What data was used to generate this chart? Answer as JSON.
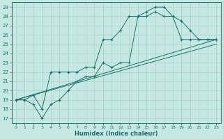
{
  "xlabel": "Humidex (Indice chaleur)",
  "bg_color": "#c5e8e3",
  "grid_color": "#a8d0cc",
  "line_color": "#1e7068",
  "xlim": [
    -0.5,
    23.5
  ],
  "ylim": [
    16.5,
    29.5
  ],
  "xticks": [
    0,
    1,
    2,
    3,
    4,
    5,
    6,
    7,
    8,
    9,
    10,
    11,
    12,
    13,
    14,
    15,
    16,
    17,
    18,
    19,
    20,
    21,
    22,
    23
  ],
  "yticks": [
    17,
    18,
    19,
    20,
    21,
    22,
    23,
    24,
    25,
    26,
    27,
    28,
    29
  ],
  "line1_x": [
    0,
    1,
    2,
    3,
    4,
    5,
    6,
    7,
    8,
    9,
    10,
    11,
    12,
    13,
    14,
    15,
    16,
    17,
    18,
    19,
    20,
    21,
    22,
    23
  ],
  "line1_y": [
    19.0,
    19.0,
    19.5,
    18.0,
    22.0,
    22.0,
    22.0,
    22.0,
    22.5,
    22.5,
    25.5,
    25.5,
    26.5,
    28.0,
    28.0,
    28.5,
    29.0,
    29.0,
    28.0,
    27.5,
    26.5,
    25.5,
    25.5,
    25.5
  ],
  "line2_x": [
    0,
    1,
    2,
    3,
    4,
    5,
    6,
    7,
    8,
    9,
    10,
    11,
    12,
    13,
    14,
    15,
    16,
    17,
    18,
    19,
    20,
    21,
    22,
    23
  ],
  "line2_y": [
    19.0,
    19.0,
    18.5,
    17.0,
    18.5,
    19.0,
    20.0,
    21.0,
    21.5,
    21.5,
    23.0,
    22.5,
    23.0,
    23.0,
    28.0,
    28.0,
    28.5,
    28.0,
    28.0,
    25.5,
    25.5,
    25.5,
    25.5,
    25.5
  ],
  "line3_x": [
    0,
    23
  ],
  "line3_y": [
    19.0,
    25.5
  ],
  "line4_x": [
    0,
    23
  ],
  "line4_y": [
    19.0,
    25.0
  ]
}
